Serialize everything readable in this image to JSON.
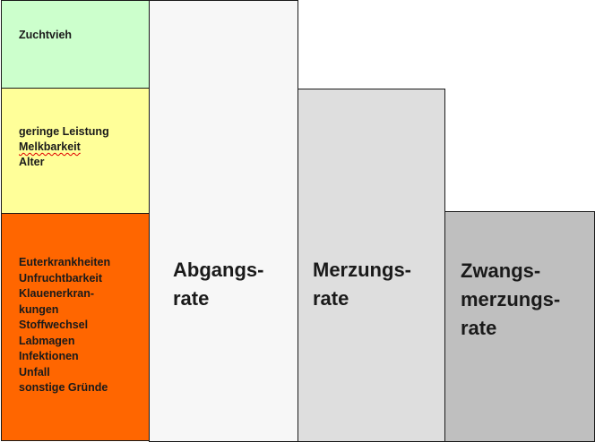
{
  "left_column": {
    "top_box": {
      "lines": [
        "Zuchtvieh"
      ]
    },
    "middle_box": {
      "lines": [
        "geringe Leistung",
        "Melkbarkeit",
        "Alter"
      ]
    },
    "bottom_box": {
      "lines": [
        "Euterkrankheiten",
        "Unfruchtbarkeit",
        "Klauenerkran-",
        "kungen",
        "Stoffwechsel",
        "Labmagen",
        "Infektionen",
        "Unfall",
        "sonstige Gründe"
      ]
    }
  },
  "columns": [
    {
      "lines": [
        "Abgangs-",
        "rate"
      ]
    },
    {
      "lines": [
        "Merzungs-",
        "rate"
      ]
    },
    {
      "lines": [
        "Zwangs-",
        "merzungs-",
        "rate"
      ]
    }
  ],
  "colors": {
    "top_box": "#ccffcc",
    "middle_box": "#ffff99",
    "bottom_box": "#ff6600",
    "abgangsrate": "#f7f7f7",
    "merzungsrate": "#dedede",
    "zwangsmerzungsrate": "#bfbfbf"
  }
}
